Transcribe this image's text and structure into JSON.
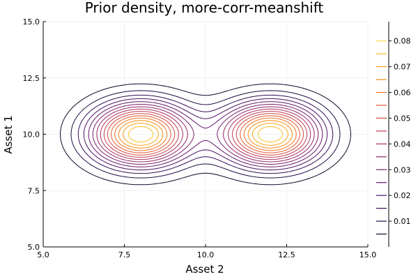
{
  "chart_data": {
    "type": "contour",
    "title": "Prior density, more-corr-meanshift",
    "xlabel": "Asset 2",
    "ylabel": "Asset 1",
    "xlim": [
      5.0,
      15.0
    ],
    "ylim": [
      5.0,
      15.0
    ],
    "xticks": [
      "5.0",
      "7.5",
      "10.0",
      "12.5",
      "15.0"
    ],
    "xtick_values": [
      5.0,
      7.5,
      10.0,
      12.5,
      15.0
    ],
    "yticks": [
      "5.0",
      "7.5",
      "10.0",
      "12.5",
      "15.0"
    ],
    "ytick_values": [
      5.0,
      7.5,
      10.0,
      12.5,
      15.0
    ],
    "grid": true,
    "colormap": "inferno",
    "colorbar": {
      "ticks": [
        "0.01",
        "0.02",
        "0.03",
        "0.04",
        "0.05",
        "0.06",
        "0.07",
        "0.08"
      ],
      "tick_values": [
        0.01,
        0.02,
        0.03,
        0.04,
        0.05,
        0.06,
        0.07,
        0.08
      ],
      "range": [
        0.0,
        0.0875
      ]
    },
    "levels": [
      0.005,
      0.01,
      0.015,
      0.02,
      0.025,
      0.03,
      0.035,
      0.04,
      0.045,
      0.05,
      0.055,
      0.06,
      0.065,
      0.07,
      0.075,
      0.08
    ],
    "modes": [
      {
        "center": [
          8.0,
          10.0
        ],
        "peak_density": 0.08
      },
      {
        "center": [
          12.0,
          10.0
        ],
        "peak_density": 0.08
      }
    ],
    "colors": {
      "background": "#ffffff",
      "grid": "#e6e6e6",
      "axis": "#000000"
    }
  }
}
